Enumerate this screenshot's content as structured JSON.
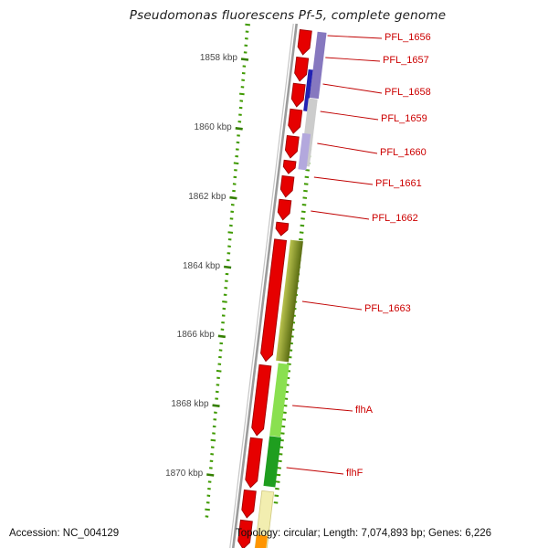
{
  "title": "Pseudomonas fluorescens Pf-5, complete genome",
  "status": {
    "accession": "Accession: NC_004129",
    "summary": "Topology: circular; Length: 7,074,893 bp; Genes: 6,226"
  },
  "colors": {
    "gene_fill": "#e60000",
    "gene_outline": "#9e0000",
    "tick_minor": "#3f9a00",
    "tick_major": "#347f00",
    "gene_label": "#cc0000",
    "leader_line": "#c00000",
    "backbone": "#9b9b9b",
    "axis_label": "#4a4a4a"
  },
  "chart_data": {
    "type": "genome-track",
    "unit": "kbp",
    "visible_range_kbp": [
      1856.3,
      1872.1
    ],
    "minor_tick_interval_kbp": 0.2,
    "axis_ticks": [
      {
        "kbp": 1858,
        "label": "1858 kbp"
      },
      {
        "kbp": 1860,
        "label": "1860 kbp"
      },
      {
        "kbp": 1862,
        "label": "1862 kbp"
      },
      {
        "kbp": 1864,
        "label": "1864 kbp"
      },
      {
        "kbp": 1866,
        "label": "1866 kbp"
      },
      {
        "kbp": 1868,
        "label": "1868 kbp"
      },
      {
        "kbp": 1870,
        "label": "1870 kbp"
      }
    ],
    "genes": [
      {
        "label": "PFL_1656",
        "start_kbp": 1857.16,
        "end_kbp": 1857.87
      },
      {
        "label": "PFL_1657",
        "start_kbp": 1857.95,
        "end_kbp": 1858.63
      },
      {
        "label": "PFL_1658",
        "start_kbp": 1858.71,
        "end_kbp": 1859.37
      },
      {
        "label": "PFL_1659",
        "start_kbp": 1859.45,
        "end_kbp": 1860.14
      },
      {
        "label": "PFL_1660",
        "start_kbp": 1860.22,
        "end_kbp": 1860.85
      },
      {
        "label": null,
        "start_kbp": 1860.93,
        "end_kbp": 1861.3
      },
      {
        "label": "PFL_1661",
        "start_kbp": 1861.38,
        "end_kbp": 1861.98
      },
      {
        "label": "PFL_1662",
        "start_kbp": 1862.06,
        "end_kbp": 1862.64
      },
      {
        "label": null,
        "start_kbp": 1862.72,
        "end_kbp": 1863.09
      },
      {
        "label": "PFL_1663",
        "start_kbp": 1863.2,
        "end_kbp": 1866.73
      },
      {
        "label": "flhA",
        "start_kbp": 1866.83,
        "end_kbp": 1868.87
      },
      {
        "label": "flhF",
        "start_kbp": 1868.94,
        "end_kbp": 1870.37
      },
      {
        "label": null,
        "start_kbp": 1870.45,
        "end_kbp": 1871.24
      },
      {
        "label": null,
        "start_kbp": 1871.32,
        "end_kbp": 1872.14
      }
    ],
    "category_bars": [
      {
        "start_kbp": 1857.21,
        "end_kbp": 1859.13,
        "color": "#8678bf"
      },
      {
        "start_kbp": 1858.29,
        "end_kbp": 1859.5,
        "color": "#2222b2"
      },
      {
        "start_kbp": 1859.13,
        "end_kbp": 1861.09,
        "color": "#cccccc"
      },
      {
        "start_kbp": 1860.14,
        "end_kbp": 1861.19,
        "color": "#b3a8dd"
      },
      {
        "start_kbp": 1863.22,
        "end_kbp": 1866.73,
        "color": "#b9c24e",
        "color2": "#5a6c12"
      },
      {
        "start_kbp": 1866.78,
        "end_kbp": 1868.89,
        "color": "#8ae050"
      },
      {
        "start_kbp": 1868.89,
        "end_kbp": 1870.34,
        "color": "#1f9e1f"
      },
      {
        "start_kbp": 1870.47,
        "end_kbp": 1872.14,
        "color": "#f2eeb0",
        "stroke": "#cfc87e"
      },
      {
        "start_kbp": 1871.74,
        "end_kbp": 1872.14,
        "color": "#ff9500"
      }
    ]
  }
}
